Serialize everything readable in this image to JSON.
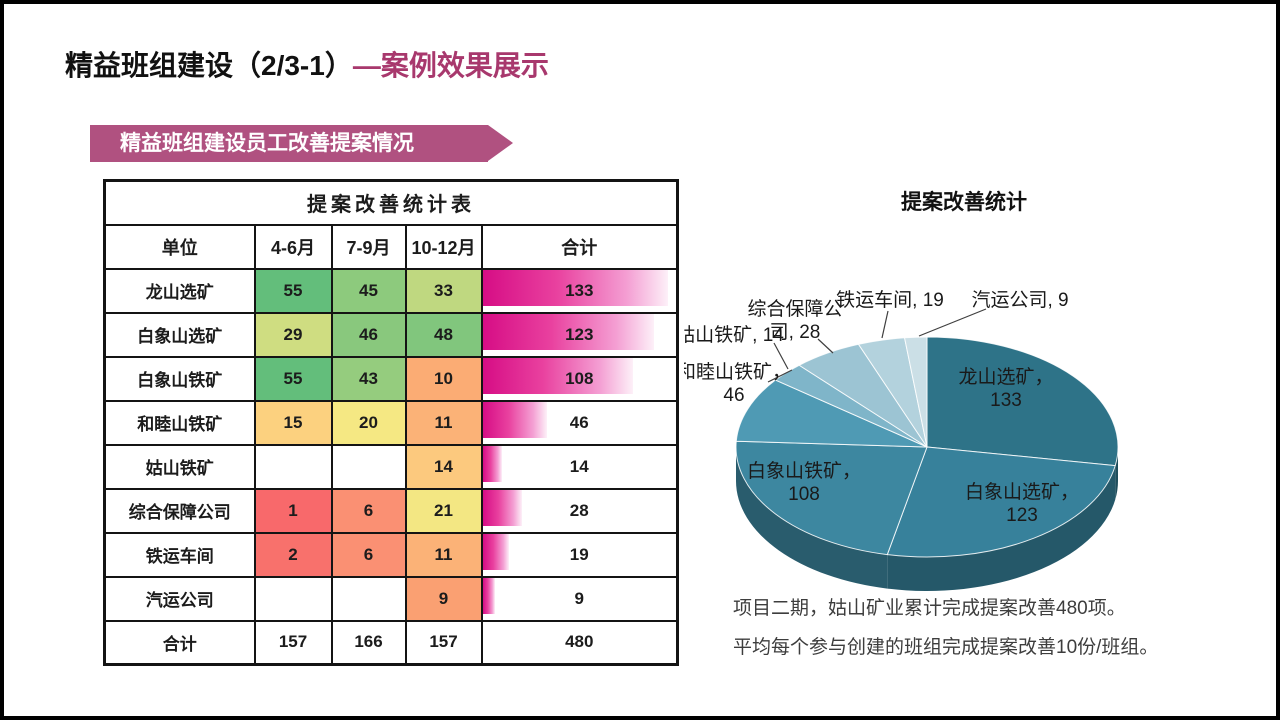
{
  "title": {
    "black": "精益班组建设（2/3-1）",
    "magenta": "—案例效果展示"
  },
  "banner": {
    "label": "精益班组建设员工改善提案情况"
  },
  "table": {
    "title": "提案改善统计表",
    "columns": [
      "单位",
      "4-6月",
      "7-9月",
      "10-12月",
      "合计"
    ],
    "rows": [
      {
        "unit": "龙山选矿",
        "cells": [
          {
            "v": "55",
            "bg": "#63BE7B"
          },
          {
            "v": "45",
            "bg": "#8DCA7D"
          },
          {
            "v": "33",
            "bg": "#BFD880"
          }
        ],
        "total": 133
      },
      {
        "unit": "白象山选矿",
        "cells": [
          {
            "v": "29",
            "bg": "#CFDD81"
          },
          {
            "v": "46",
            "bg": "#89C87D"
          },
          {
            "v": "48",
            "bg": "#81C67D"
          }
        ],
        "total": 123
      },
      {
        "unit": "白象山铁矿",
        "cells": [
          {
            "v": "55",
            "bg": "#63BE7B"
          },
          {
            "v": "43",
            "bg": "#95CC7E"
          },
          {
            "v": "10",
            "bg": "#FBAC74"
          }
        ],
        "total": 108
      },
      {
        "unit": "和睦山铁矿",
        "cells": [
          {
            "v": "15",
            "bg": "#FCD17F"
          },
          {
            "v": "20",
            "bg": "#F5E883"
          },
          {
            "v": "11",
            "bg": "#FBB277"
          }
        ],
        "total": 46
      },
      {
        "unit": "姑山铁矿",
        "cells": [
          {
            "v": "",
            "bg": ""
          },
          {
            "v": "",
            "bg": ""
          },
          {
            "v": "14",
            "bg": "#FCC97E"
          }
        ],
        "total": 14
      },
      {
        "unit": "综合保障公司",
        "cells": [
          {
            "v": "1",
            "bg": "#F8696B"
          },
          {
            "v": "6",
            "bg": "#FA9073"
          },
          {
            "v": "21",
            "bg": "#F3E783"
          }
        ],
        "total": 28
      },
      {
        "unit": "铁运车间",
        "cells": [
          {
            "v": "2",
            "bg": "#F8716C"
          },
          {
            "v": "6",
            "bg": "#FA9073"
          },
          {
            "v": "11",
            "bg": "#FBB277"
          }
        ],
        "total": 19
      },
      {
        "unit": "汽运公司",
        "cells": [
          {
            "v": "",
            "bg": ""
          },
          {
            "v": "",
            "bg": ""
          },
          {
            "v": "9",
            "bg": "#FAA072"
          }
        ],
        "total": 9
      }
    ],
    "footer": {
      "unit": "合计",
      "values": [
        "157",
        "166",
        "157"
      ],
      "total": "480"
    }
  },
  "chart_data": {
    "type": "pie",
    "style": "3d",
    "title": "提案改善统计",
    "total": 480,
    "legend_position": "data-labels",
    "slices": [
      {
        "label": "龙山选矿",
        "value": 133,
        "color": "#2E7388"
      },
      {
        "label": "白象山选矿",
        "value": 123,
        "color": "#37819B"
      },
      {
        "label": "白象山铁矿",
        "value": 108,
        "color": "#3D87A0"
      },
      {
        "label": "和睦山铁矿",
        "value": 46,
        "color": "#4F9AB4"
      },
      {
        "label": "姑山铁矿",
        "value": 14,
        "color": "#7FB5C9"
      },
      {
        "label": "综合保障公司",
        "value": 28,
        "color": "#9CC4D3"
      },
      {
        "label": "铁运车间",
        "value": 19,
        "color": "#B3D2DD"
      },
      {
        "label": "汽运公司",
        "value": 9,
        "color": "#CBDFE6"
      }
    ]
  },
  "notes": {
    "line1": "项目二期，姑山矿业累计完成提案改善480项。",
    "line2": "平均每个参与创建的班组完成提案改善10份/班组。"
  },
  "colors": {
    "accent_magenta": "#A8386D",
    "banner_bg": "#B05180",
    "databar_start": "#D60D85",
    "databar_end": "#FDF0F8",
    "slide_border": "#000000"
  }
}
